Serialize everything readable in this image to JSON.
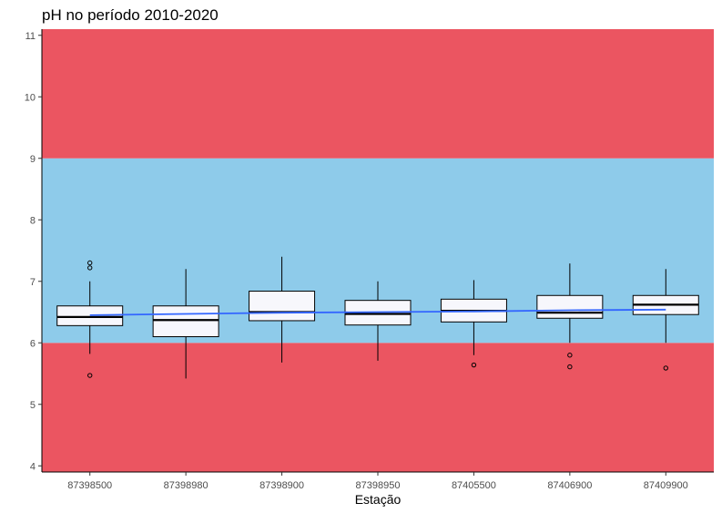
{
  "chart_data": {
    "type": "boxplot",
    "title": "pH no período 2010-2020",
    "xlabel": "Estação",
    "ylabel": "",
    "ylim": [
      3.9,
      11.1
    ],
    "y_ticks": [
      4,
      5,
      6,
      7,
      8,
      9,
      10,
      11
    ],
    "grid": false,
    "bands": [
      {
        "from": 3.9,
        "to": 6,
        "color": "#eb5561"
      },
      {
        "from": 6,
        "to": 9,
        "color": "#8ecbea"
      },
      {
        "from": 9,
        "to": 11.1,
        "color": "#eb5561"
      }
    ],
    "box_fill": "#f7f7fc",
    "trend_color": "#3366ff",
    "categories": [
      "87398500",
      "87398980",
      "87398900",
      "87398950",
      "87405500",
      "87406900",
      "87409900"
    ],
    "boxes": [
      {
        "whisker_low": 5.82,
        "q1": 6.28,
        "median": 6.42,
        "q3": 6.6,
        "whisker_high": 7.0,
        "outliers": [
          7.3,
          7.22,
          5.47
        ]
      },
      {
        "whisker_low": 5.42,
        "q1": 6.1,
        "median": 6.37,
        "q3": 6.6,
        "whisker_high": 7.2,
        "outliers": []
      },
      {
        "whisker_low": 5.68,
        "q1": 6.36,
        "median": 6.5,
        "q3": 6.84,
        "whisker_high": 7.4,
        "outliers": []
      },
      {
        "whisker_low": 5.71,
        "q1": 6.29,
        "median": 6.47,
        "q3": 6.69,
        "whisker_high": 7.0,
        "outliers": []
      },
      {
        "whisker_low": 5.8,
        "q1": 6.34,
        "median": 6.52,
        "q3": 6.71,
        "whisker_high": 7.02,
        "outliers": [
          5.64
        ]
      },
      {
        "whisker_low": 6.0,
        "q1": 6.4,
        "median": 6.49,
        "q3": 6.77,
        "whisker_high": 7.29,
        "outliers": [
          5.8,
          5.61
        ]
      },
      {
        "whisker_low": 6.0,
        "q1": 6.46,
        "median": 6.62,
        "q3": 6.77,
        "whisker_high": 7.2,
        "outliers": [
          5.59
        ]
      }
    ],
    "trend": [
      6.45,
      6.47,
      6.49,
      6.5,
      6.51,
      6.53,
      6.54
    ]
  }
}
